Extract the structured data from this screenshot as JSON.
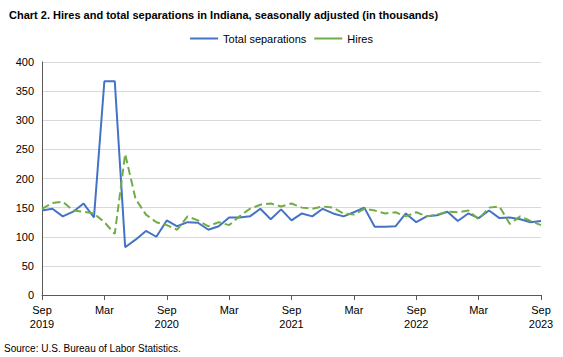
{
  "chart_data": {
    "type": "line",
    "title": "Chart 2. Hires and total separations in Indiana, seasonally adjusted (in thousands)",
    "source": "Source: U.S. Bureau of Labor Statistics.",
    "categories": [
      "Sep\n2019",
      null,
      null,
      null,
      null,
      null,
      "Mar",
      null,
      null,
      null,
      null,
      null,
      "Sep\n2020",
      null,
      null,
      null,
      null,
      null,
      "Mar",
      null,
      null,
      null,
      null,
      null,
      "Sep\n2021",
      null,
      null,
      null,
      null,
      null,
      "Mar",
      null,
      null,
      null,
      null,
      null,
      "Sep\n2022",
      null,
      null,
      null,
      null,
      null,
      "Mar",
      null,
      null,
      null,
      null,
      null,
      "Sep\n2023"
    ],
    "series": [
      {
        "name": "Total separations",
        "color": "#4472c4",
        "line_style": "solid",
        "values": [
          145,
          148,
          135,
          143,
          157,
          133,
          367,
          367,
          82,
          95,
          110,
          100,
          128,
          118,
          125,
          124,
          112,
          118,
          133,
          133,
          135,
          148,
          130,
          147,
          128,
          140,
          135,
          148,
          140,
          135,
          142,
          150,
          117,
          117,
          118,
          140,
          125,
          135,
          137,
          143,
          127,
          140,
          132,
          145,
          132,
          133,
          130,
          125,
          127
        ]
      },
      {
        "name": "Hires",
        "color": "#70ad47",
        "line_style": "dashed",
        "values": [
          148,
          158,
          160,
          145,
          143,
          140,
          125,
          105,
          242,
          165,
          138,
          125,
          120,
          112,
          135,
          128,
          118,
          125,
          120,
          135,
          148,
          155,
          157,
          152,
          157,
          150,
          148,
          152,
          150,
          140,
          138,
          148,
          145,
          140,
          142,
          135,
          142,
          135,
          138,
          143,
          142,
          145,
          130,
          150,
          152,
          122,
          135,
          127,
          120
        ]
      }
    ],
    "ylim": [
      0,
      400
    ],
    "yticks": [
      0,
      50,
      100,
      150,
      200,
      250,
      300,
      350,
      400
    ],
    "grid": true,
    "legend": "top"
  }
}
